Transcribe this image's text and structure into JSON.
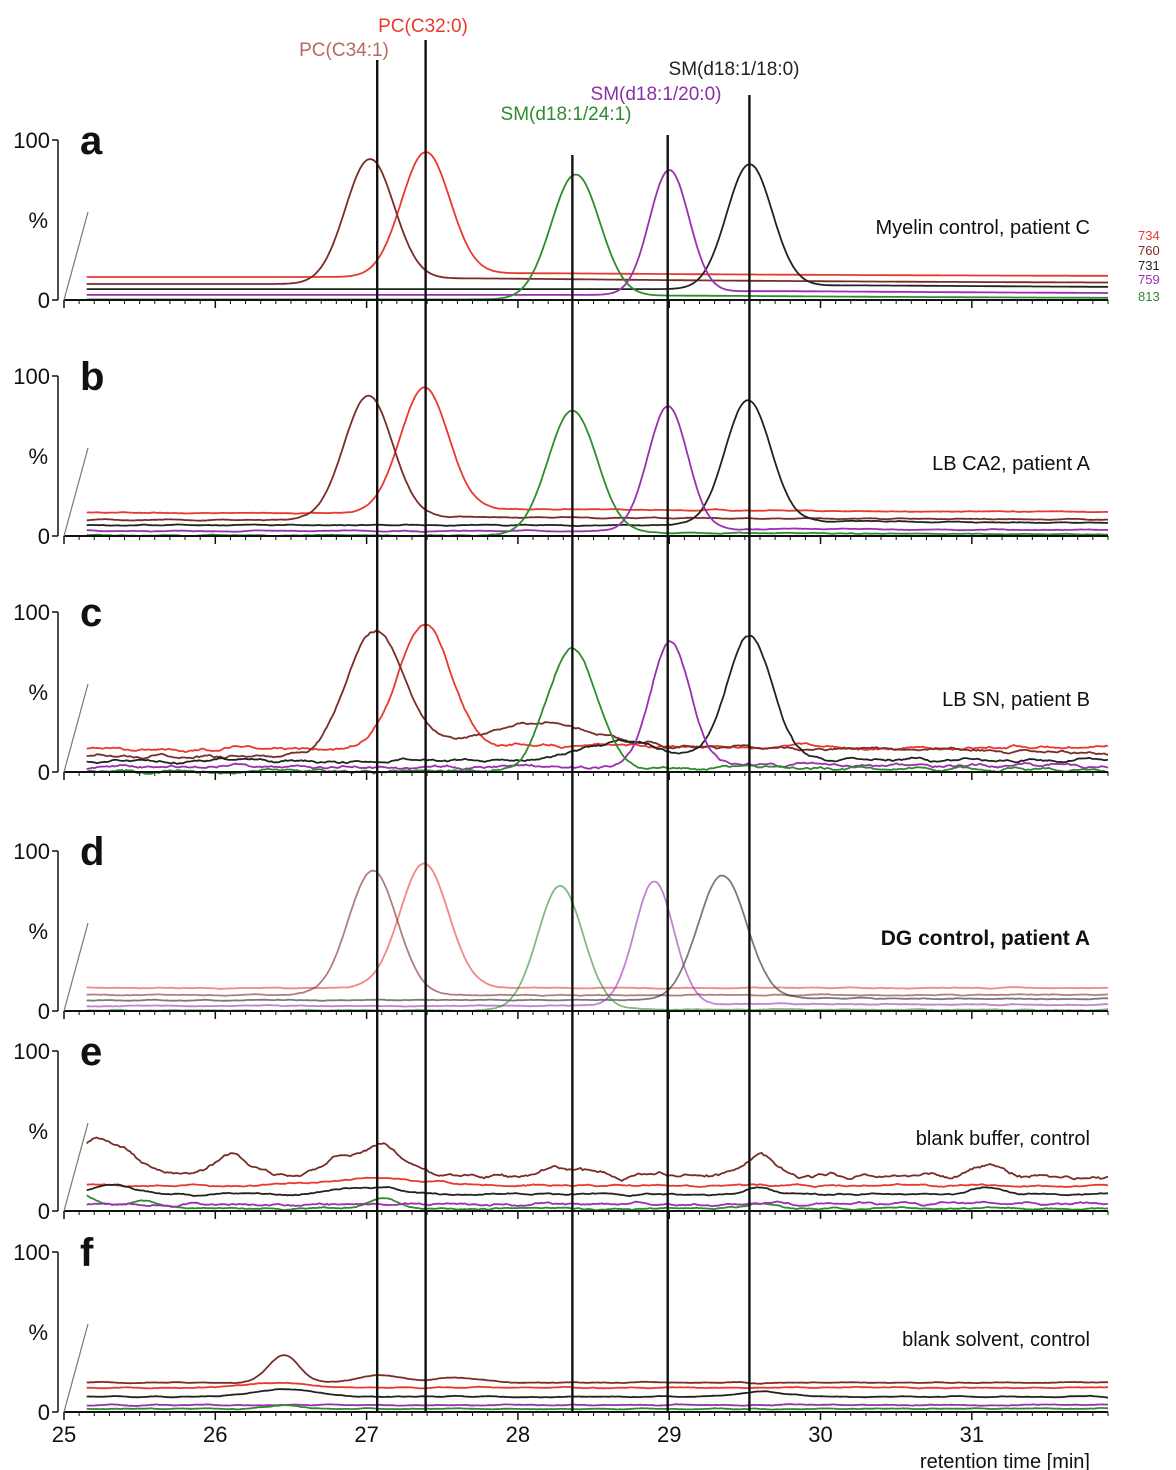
{
  "chart_data": {
    "type": "line",
    "xlabel": "retention time [min]",
    "xlim": [
      25,
      31.9
    ],
    "x_ticks": [
      "25",
      "26",
      "27",
      "28",
      "29",
      "30",
      "31"
    ],
    "y_ticks": [
      "100",
      "%",
      "0"
    ],
    "ylim": [
      0,
      100
    ],
    "colors": {
      "734": "#e8392f",
      "760": "#7a2c26",
      "731": "#222222",
      "759": "#9a2fb0",
      "813": "#2e8b2e"
    },
    "species": [
      {
        "name": "PC(C34:1)",
        "rt": 27.07,
        "color": "#b46a60"
      },
      {
        "name": "PC(C32:0)",
        "rt": 27.39,
        "color": "#e8392f"
      },
      {
        "name": "SM(d18:1/24:1)",
        "rt": 28.36,
        "color": "#2e8b2e"
      },
      {
        "name": "SM(d18:1/20:0)",
        "rt": 28.99,
        "color": "#8a2fa8"
      },
      {
        "name": "SM(d18:1/18:0)",
        "rt": 29.53,
        "color": "#222222"
      }
    ],
    "mz_labels": [
      "734",
      "760",
      "731",
      "759",
      "813"
    ],
    "panels": [
      {
        "letter": "a",
        "title": "Myelin control, patient C",
        "bold": false,
        "opacity": 1,
        "noise": 0,
        "traces": [
          {
            "mz": "734",
            "baseline": 36,
            "peaks": [
              {
                "rt": 27.39,
                "height": 100,
                "width": 0.16
              }
            ],
            "tail": 4
          },
          {
            "mz": "760",
            "baseline": 25,
            "peaks": [
              {
                "rt": 27.02,
                "height": 100,
                "width": 0.16
              }
            ],
            "tail": 6
          },
          {
            "mz": "731",
            "baseline": 17,
            "peaks": [
              {
                "rt": 29.53,
                "height": 100,
                "width": 0.15
              }
            ],
            "tail": 4
          },
          {
            "mz": "759",
            "baseline": 8,
            "peaks": [
              {
                "rt": 29.0,
                "height": 100,
                "width": 0.13
              }
            ],
            "tail": 4
          },
          {
            "mz": "813",
            "baseline": 1,
            "peaks": [
              {
                "rt": 28.38,
                "height": 100,
                "width": 0.16
              }
            ],
            "tail": 4
          }
        ]
      },
      {
        "letter": "b",
        "title": "LB CA2, patient A",
        "bold": false,
        "opacity": 1,
        "noise": 0.6,
        "traces": [
          {
            "mz": "734",
            "baseline": 36,
            "peaks": [
              {
                "rt": 27.38,
                "height": 100,
                "width": 0.16
              }
            ],
            "tail": 4
          },
          {
            "mz": "760",
            "baseline": 25,
            "peaks": [
              {
                "rt": 27.01,
                "height": 100,
                "width": 0.16
              }
            ],
            "tail": 3
          },
          {
            "mz": "731",
            "baseline": 17,
            "peaks": [
              {
                "rt": 29.52,
                "height": 100,
                "width": 0.15
              }
            ],
            "tail": 4
          },
          {
            "mz": "759",
            "baseline": 8,
            "peaks": [
              {
                "rt": 28.99,
                "height": 100,
                "width": 0.13
              }
            ],
            "tail": 2
          },
          {
            "mz": "813",
            "baseline": 1,
            "peaks": [
              {
                "rt": 28.36,
                "height": 100,
                "width": 0.16
              }
            ],
            "tail": 3
          }
        ]
      },
      {
        "letter": "c",
        "title": "LB SN, patient B",
        "bold": false,
        "opacity": 1,
        "noise": 2.2,
        "traces": [
          {
            "mz": "734",
            "baseline": 36,
            "peaks": [
              {
                "rt": 27.38,
                "height": 100,
                "width": 0.17
              }
            ],
            "tail": 4
          },
          {
            "mz": "760",
            "baseline": 25,
            "peaks": [
              {
                "rt": 27.05,
                "height": 100,
                "width": 0.18
              },
              {
                "rt": 28.2,
                "height": 16,
                "width": 0.3
              }
            ],
            "tail": 16
          },
          {
            "mz": "731",
            "baseline": 17,
            "peaks": [
              {
                "rt": 29.53,
                "height": 100,
                "width": 0.15
              },
              {
                "rt": 28.7,
                "height": 16,
                "width": 0.25
              }
            ],
            "tail": 2
          },
          {
            "mz": "759",
            "baseline": 8,
            "peaks": [
              {
                "rt": 29.01,
                "height": 100,
                "width": 0.13
              }
            ],
            "tail": 2
          },
          {
            "mz": "813",
            "baseline": 1,
            "peaks": [
              {
                "rt": 28.36,
                "height": 100,
                "width": 0.16
              }
            ],
            "tail": 4
          }
        ]
      },
      {
        "letter": "d",
        "title": "DG control, patient A",
        "bold": true,
        "opacity": 0.6,
        "noise": 0.6,
        "traces": [
          {
            "mz": "734",
            "baseline": 36,
            "peaks": [
              {
                "rt": 27.38,
                "height": 100,
                "width": 0.16
              }
            ],
            "tail": 0
          },
          {
            "mz": "760",
            "baseline": 25,
            "peaks": [
              {
                "rt": 27.04,
                "height": 100,
                "width": 0.16
              }
            ],
            "tail": 0
          },
          {
            "mz": "731",
            "baseline": 17,
            "peaks": [
              {
                "rt": 29.35,
                "height": 100,
                "width": 0.16
              }
            ],
            "tail": 2
          },
          {
            "mz": "759",
            "baseline": 8,
            "peaks": [
              {
                "rt": 28.9,
                "height": 100,
                "width": 0.13
              }
            ],
            "tail": 2
          },
          {
            "mz": "813",
            "baseline": 1,
            "peaks": [
              {
                "rt": 28.28,
                "height": 100,
                "width": 0.15
              }
            ],
            "tail": 1
          }
        ]
      },
      {
        "letter": "e",
        "title": "blank buffer, control",
        "bold": false,
        "opacity": 1,
        "noise": 0,
        "traces": [
          {
            "mz": "760",
            "baseline": 55,
            "peaks": [
              {
                "rt": 25.2,
                "height": 26,
                "width": 0.1
              },
              {
                "rt": 25.4,
                "height": 20,
                "width": 0.1
              },
              {
                "rt": 26.1,
                "height": 16,
                "width": 0.12
              },
              {
                "rt": 26.8,
                "height": 12,
                "width": 0.1
              },
              {
                "rt": 27.1,
                "height": 24,
                "width": 0.15
              },
              {
                "rt": 28.3,
                "height": 8,
                "width": 0.12
              },
              {
                "rt": 29.6,
                "height": 20,
                "width": 0.08
              },
              {
                "rt": 31.1,
                "height": 8,
                "width": 0.1
              }
            ],
            "tail": 0
          },
          {
            "mz": "734",
            "baseline": 40,
            "peaks": [
              {
                "rt": 27.1,
                "height": 6,
                "width": 0.3
              }
            ],
            "tail": 0
          },
          {
            "mz": "731",
            "baseline": 26,
            "peaks": [
              {
                "rt": 25.3,
                "height": 8,
                "width": 0.15
              },
              {
                "rt": 27.0,
                "height": 6,
                "width": 0.2
              },
              {
                "rt": 29.6,
                "height": 6,
                "width": 0.08
              },
              {
                "rt": 31.1,
                "height": 6,
                "width": 0.1
              }
            ],
            "tail": 0
          },
          {
            "mz": "813",
            "baseline": 4,
            "peaks": [
              {
                "rt": 25.1,
                "height": 10,
                "width": 0.1
              },
              {
                "rt": 25.5,
                "height": 6,
                "width": 0.12
              },
              {
                "rt": 27.1,
                "height": 8,
                "width": 0.1
              },
              {
                "rt": 29.6,
                "height": 4,
                "width": 0.1
              }
            ],
            "tail": 0
          },
          {
            "mz": "759",
            "baseline": 11,
            "peaks": [],
            "tail": 0
          }
        ]
      },
      {
        "letter": "f",
        "title": "blank solvent, control",
        "bold": false,
        "opacity": 1,
        "noise": 0.6,
        "traces": [
          {
            "mz": "760",
            "baseline": 46,
            "peaks": [
              {
                "rt": 26.45,
                "height": 22,
                "width": 0.1
              },
              {
                "rt": 27.1,
                "height": 6,
                "width": 0.15
              },
              {
                "rt": 27.6,
                "height": 4,
                "width": 0.15
              }
            ],
            "tail": 0
          },
          {
            "mz": "734",
            "baseline": 38,
            "peaks": [
              {
                "rt": 26.4,
                "height": 4,
                "width": 0.2
              }
            ],
            "tail": 0
          },
          {
            "mz": "731",
            "baseline": 24,
            "peaks": [
              {
                "rt": 26.45,
                "height": 6,
                "width": 0.2
              },
              {
                "rt": 29.6,
                "height": 4,
                "width": 0.15
              }
            ],
            "tail": 0
          },
          {
            "mz": "759",
            "baseline": 11,
            "peaks": [],
            "tail": 0
          },
          {
            "mz": "813",
            "baseline": 5,
            "peaks": [
              {
                "rt": 26.45,
                "height": 3,
                "width": 0.1
              }
            ],
            "tail": 0
          }
        ]
      }
    ]
  }
}
